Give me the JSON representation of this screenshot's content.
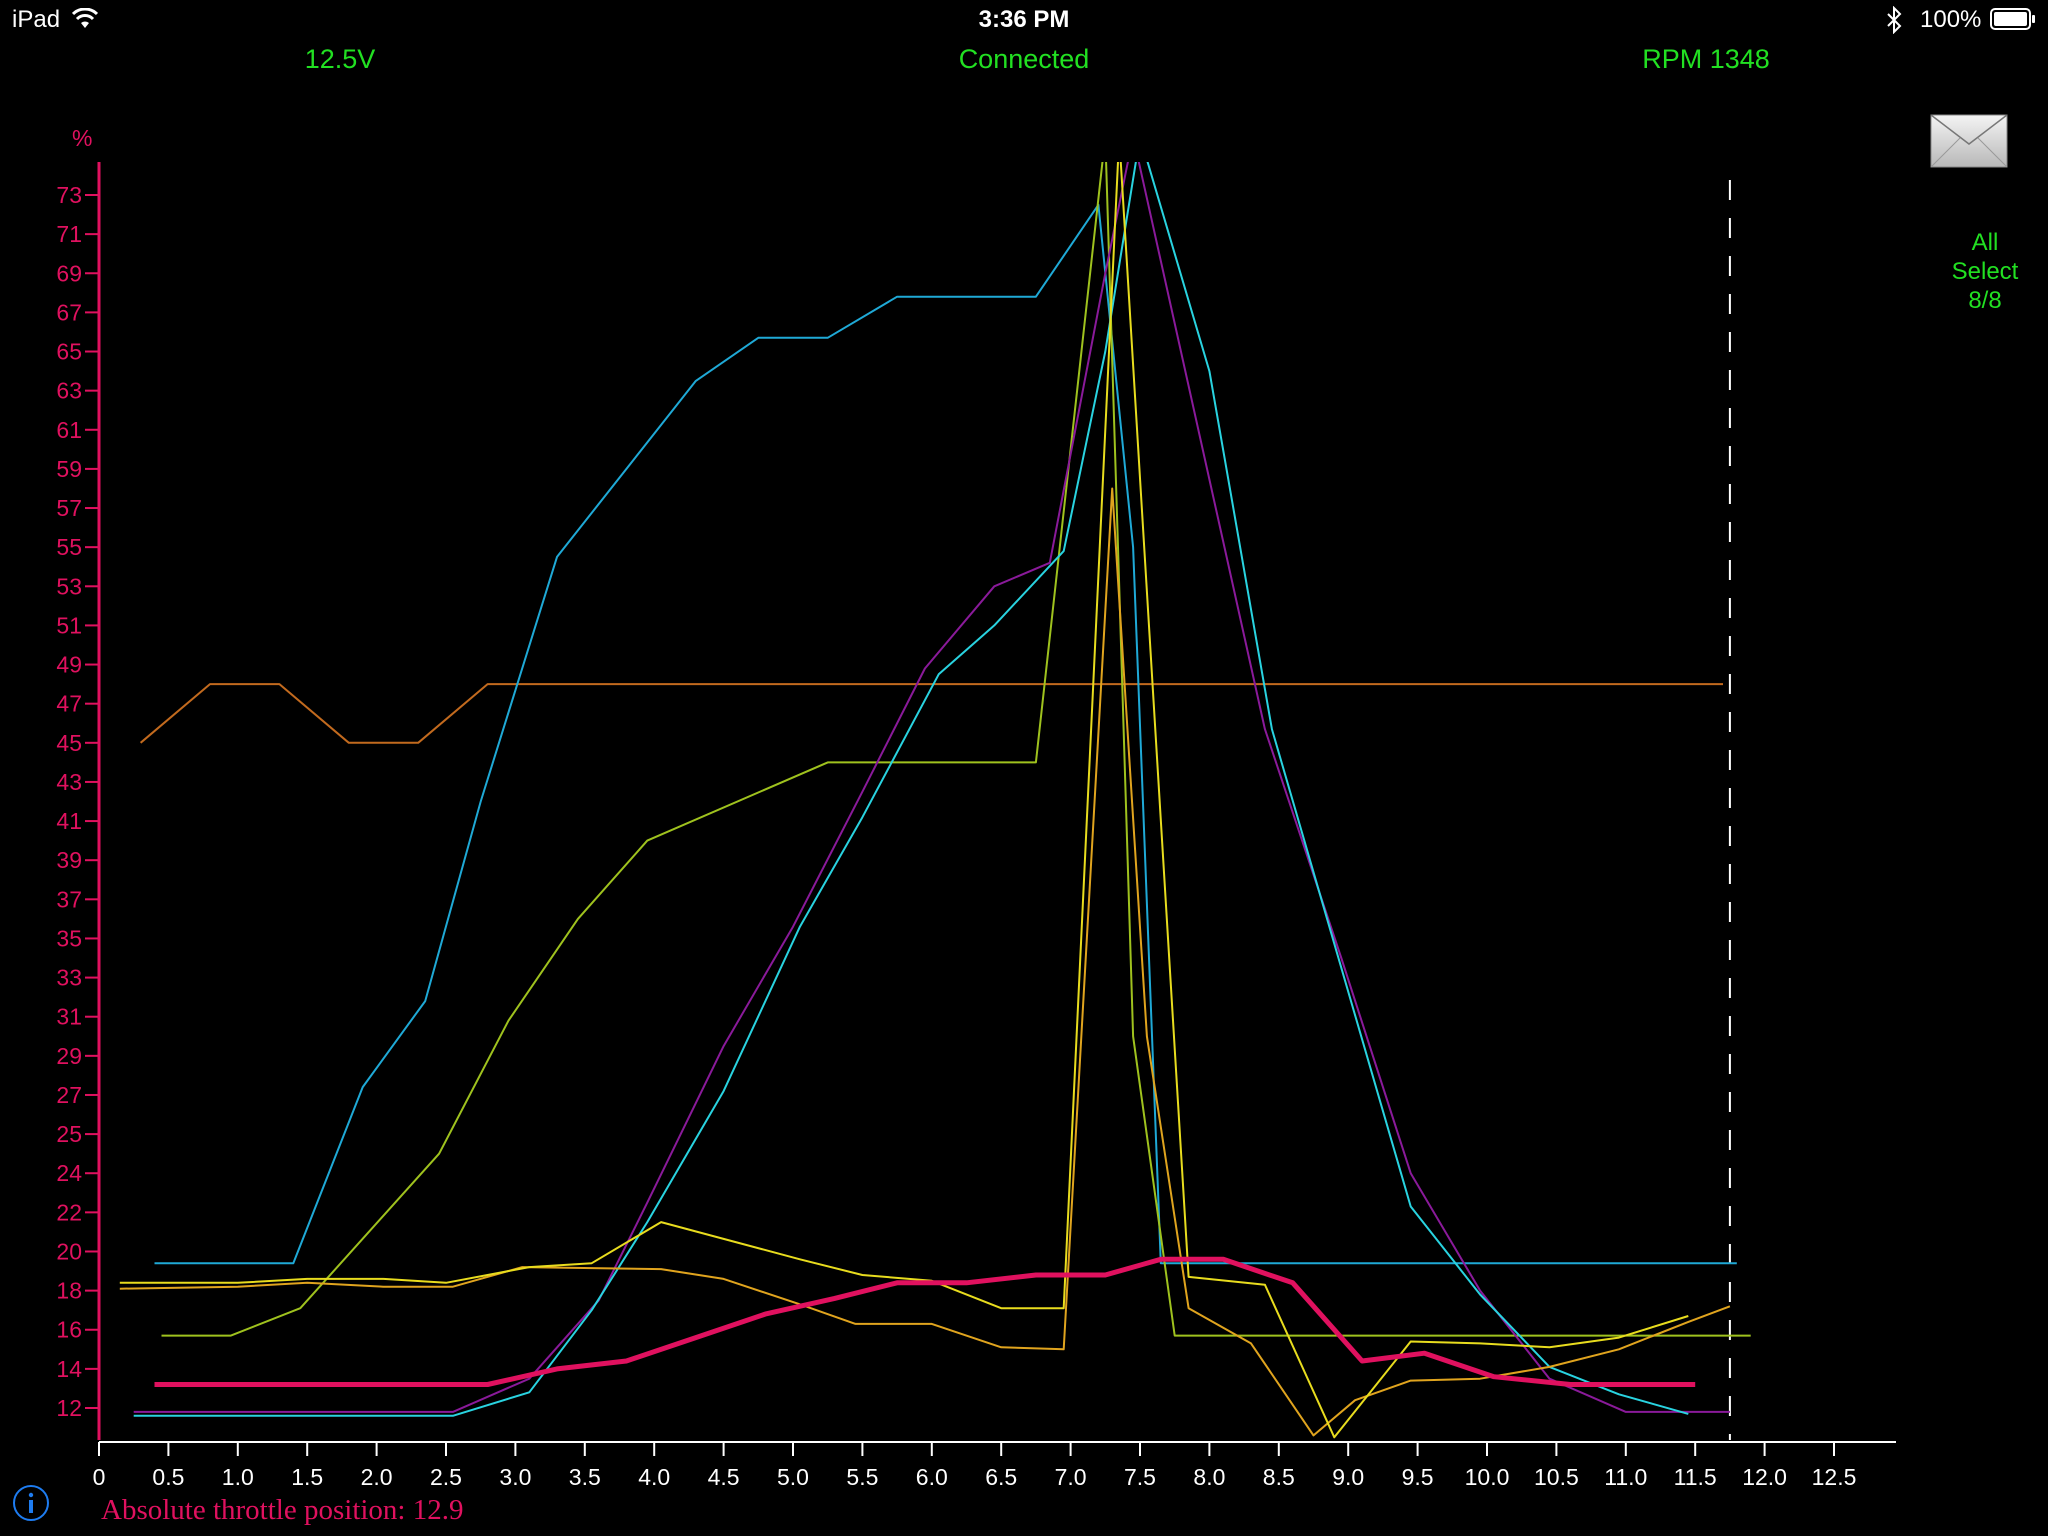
{
  "status_bar": {
    "device": "iPad",
    "time": "3:36 PM",
    "battery": "100%"
  },
  "header": {
    "voltage": "12.5V",
    "connection": "Connected",
    "rpm": "RPM 1348"
  },
  "select_button": {
    "line1": "All",
    "line2": "Select",
    "line3": "8/8"
  },
  "readout": "Absolute throttle position: 12.9",
  "colors": {
    "accent_green": "#22e022",
    "axis_red": "#e0115f"
  },
  "chart_data": {
    "type": "line",
    "ylabel": "%",
    "xlim": [
      0,
      13.0
    ],
    "ylim": [
      10.5,
      75
    ],
    "y_ticks": [
      12,
      14,
      16,
      18,
      20,
      22,
      24,
      25,
      27,
      29,
      31,
      33,
      35,
      37,
      39,
      41,
      43,
      45,
      47,
      49,
      51,
      53,
      55,
      57,
      59,
      61,
      63,
      65,
      67,
      69,
      71,
      73
    ],
    "x_ticks": [
      "0",
      "0.5",
      "1.0",
      "1.5",
      "2.0",
      "2.5",
      "3.0",
      "3.5",
      "4.0",
      "4.5",
      "5.0",
      "5.5",
      "6.0",
      "6.5",
      "7.0",
      "7.5",
      "8.0",
      "8.5",
      "9.0",
      "9.5",
      "10.0",
      "10.5",
      "11.0",
      "11.5",
      "12.0",
      "12.5"
    ],
    "cursor_x": 11.75,
    "series": [
      {
        "color": "#c26a1e",
        "width": 2,
        "points": [
          [
            0.3,
            45
          ],
          [
            0.8,
            48
          ],
          [
            1.3,
            48
          ],
          [
            1.8,
            45
          ],
          [
            2.3,
            45
          ],
          [
            2.8,
            48
          ],
          [
            11.7,
            48
          ]
        ]
      },
      {
        "color": "#1fa9d6",
        "width": 2,
        "points": [
          [
            0.4,
            19.4
          ],
          [
            1.4,
            19.4
          ],
          [
            1.9,
            27.4
          ],
          [
            2.35,
            31.8
          ],
          [
            2.75,
            42
          ],
          [
            3.3,
            54.5
          ],
          [
            4.3,
            63.5
          ],
          [
            4.75,
            65.7
          ],
          [
            5.25,
            65.7
          ],
          [
            5.75,
            67.8
          ],
          [
            6.75,
            67.8
          ],
          [
            7.2,
            72.5
          ],
          [
            7.45,
            55
          ],
          [
            7.65,
            19.4
          ],
          [
            11.8,
            19.4
          ]
        ]
      },
      {
        "color": "#9fc21e",
        "width": 2,
        "points": [
          [
            0.45,
            15.7
          ],
          [
            0.95,
            15.7
          ],
          [
            1.45,
            17.1
          ],
          [
            2.45,
            24.5
          ],
          [
            2.95,
            30.8
          ],
          [
            3.45,
            36
          ],
          [
            3.95,
            40
          ],
          [
            5.25,
            44
          ],
          [
            6.75,
            44
          ],
          [
            7.25,
            76
          ],
          [
            7.45,
            30
          ],
          [
            7.75,
            15.7
          ],
          [
            11.9,
            15.7
          ]
        ]
      },
      {
        "color": "#8a1a9a",
        "width": 2,
        "points": [
          [
            0.25,
            11.8
          ],
          [
            2.55,
            11.8
          ],
          [
            3.1,
            13.5
          ],
          [
            3.6,
            17.5
          ],
          [
            3.95,
            22.5
          ],
          [
            4.5,
            29.5
          ],
          [
            5.0,
            35.6
          ],
          [
            5.5,
            42.5
          ],
          [
            5.95,
            48.8
          ],
          [
            6.45,
            53
          ],
          [
            6.85,
            54.2
          ],
          [
            7.25,
            69
          ],
          [
            7.45,
            76
          ],
          [
            8.4,
            45.7
          ],
          [
            8.95,
            34
          ],
          [
            9.45,
            24
          ],
          [
            9.95,
            18
          ],
          [
            10.45,
            13.5
          ],
          [
            11.0,
            11.8
          ],
          [
            11.45,
            11.8
          ],
          [
            11.75,
            11.8
          ]
        ]
      },
      {
        "color": "#29d3e0",
        "width": 2,
        "points": [
          [
            0.25,
            11.6
          ],
          [
            2.55,
            11.6
          ],
          [
            3.1,
            12.8
          ],
          [
            3.55,
            17
          ],
          [
            3.95,
            21.5
          ],
          [
            4.5,
            27.2
          ],
          [
            5.05,
            35.6
          ],
          [
            5.5,
            41.2
          ],
          [
            6.05,
            48.5
          ],
          [
            6.45,
            51
          ],
          [
            6.95,
            54.8
          ],
          [
            7.25,
            65
          ],
          [
            7.5,
            76
          ],
          [
            8.0,
            64
          ],
          [
            8.45,
            45.7
          ],
          [
            9.45,
            22.3
          ],
          [
            9.95,
            17.8
          ],
          [
            10.45,
            14.1
          ],
          [
            10.95,
            12.7
          ],
          [
            11.45,
            11.7
          ]
        ]
      },
      {
        "color": "#e0a41e",
        "width": 2,
        "points": [
          [
            0.15,
            18.1
          ],
          [
            1.0,
            18.2
          ],
          [
            1.5,
            18.4
          ],
          [
            2.05,
            18.2
          ],
          [
            2.55,
            18.2
          ],
          [
            3.05,
            19.2
          ],
          [
            4.05,
            19.1
          ],
          [
            4.5,
            18.6
          ],
          [
            5.05,
            17.3
          ],
          [
            5.45,
            16.3
          ],
          [
            6.0,
            16.3
          ],
          [
            6.5,
            15.1
          ],
          [
            6.95,
            15
          ],
          [
            7.3,
            58
          ],
          [
            7.55,
            30
          ],
          [
            7.85,
            17.1
          ],
          [
            8.3,
            15.3
          ],
          [
            8.75,
            10.6
          ],
          [
            9.05,
            12.4
          ],
          [
            9.45,
            13.4
          ],
          [
            9.95,
            13.5
          ],
          [
            10.45,
            14.1
          ],
          [
            10.95,
            15
          ],
          [
            11.45,
            16.4
          ],
          [
            11.75,
            17.2
          ]
        ]
      },
      {
        "color": "#e8dc1e",
        "width": 2,
        "points": [
          [
            0.15,
            18.4
          ],
          [
            1.0,
            18.4
          ],
          [
            1.5,
            18.6
          ],
          [
            2.05,
            18.6
          ],
          [
            2.5,
            18.4
          ],
          [
            3.1,
            19.2
          ],
          [
            3.55,
            19.4
          ],
          [
            4.05,
            21.5
          ],
          [
            5.05,
            19.6
          ],
          [
            5.5,
            18.8
          ],
          [
            6.0,
            18.5
          ],
          [
            6.5,
            17.1
          ],
          [
            6.95,
            17.1
          ],
          [
            7.35,
            76
          ],
          [
            7.85,
            18.7
          ],
          [
            8.4,
            18.3
          ],
          [
            8.9,
            10.5
          ],
          [
            9.45,
            15.4
          ],
          [
            9.95,
            15.3
          ],
          [
            10.45,
            15.1
          ],
          [
            10.95,
            15.6
          ],
          [
            11.45,
            16.7
          ]
        ]
      },
      {
        "color": "#e0115f",
        "width": 5,
        "points": [
          [
            0.4,
            13.2
          ],
          [
            2.8,
            13.2
          ],
          [
            3.3,
            14
          ],
          [
            3.8,
            14.4
          ],
          [
            4.3,
            15.6
          ],
          [
            4.8,
            16.8
          ],
          [
            5.3,
            17.6
          ],
          [
            5.75,
            18.4
          ],
          [
            6.25,
            18.4
          ],
          [
            6.75,
            18.8
          ],
          [
            7.25,
            18.8
          ],
          [
            7.65,
            19.6
          ],
          [
            8.1,
            19.6
          ],
          [
            8.6,
            18.4
          ],
          [
            9.1,
            14.4
          ],
          [
            9.55,
            14.8
          ],
          [
            10.05,
            13.6
          ],
          [
            10.6,
            13.2
          ],
          [
            11.5,
            13.2
          ]
        ]
      }
    ]
  }
}
